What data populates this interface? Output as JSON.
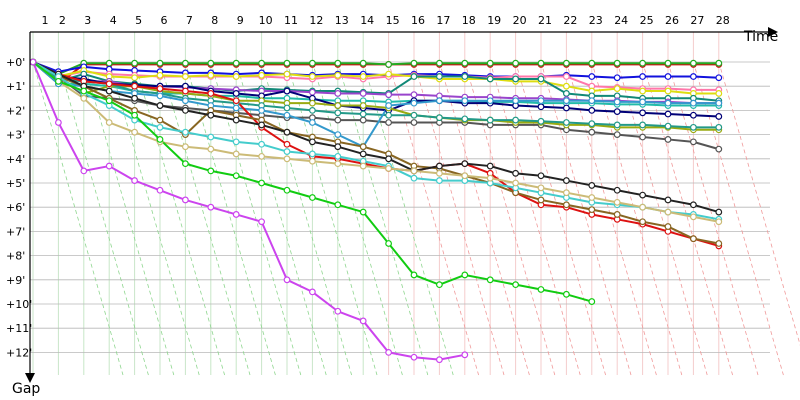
{
  "chart_data": {
    "type": "line",
    "x_axis_label": "Time",
    "y_axis_label": "Gap",
    "x_ticks": [
      1,
      2,
      3,
      4,
      5,
      6,
      7,
      8,
      9,
      10,
      11,
      12,
      13,
      14,
      15,
      16,
      17,
      18,
      19,
      20,
      21,
      22,
      23,
      24,
      25,
      26,
      27,
      28
    ],
    "y_tick_labels": [
      "+0'",
      "+1'",
      "+2'",
      "+3'",
      "+4'",
      "+5'",
      "+6'",
      "+7'",
      "+8'",
      "+9'",
      "+10'",
      "+11'",
      "+12'"
    ],
    "y_range_minutes": [
      0,
      12.5
    ],
    "x_range": [
      1,
      29
    ],
    "grid": true,
    "vertical_grid_colors": [
      "#c8e6c8",
      "#f4cccc"
    ],
    "series": [
      {
        "color": "#cc1111",
        "values": [
          0,
          0.9,
          0.1,
          0.1,
          0.1,
          0.1,
          0.1,
          0.1,
          0.1,
          0.1,
          0.1,
          0.1,
          0.1,
          0.1,
          0.1,
          0.1,
          0.1,
          0.1,
          0.1,
          0.1,
          0.1,
          0.1,
          0.1,
          0.1,
          0.1,
          0.1,
          0.1,
          0.1
        ]
      },
      {
        "color": "#22aa22",
        "values": [
          0,
          0.5,
          0.05,
          0.05,
          0.05,
          0.05,
          0.05,
          0.05,
          0.05,
          0.05,
          0.05,
          0.05,
          0.05,
          0.05,
          0.1,
          0.05,
          0.05,
          0.05,
          0.05,
          0.05,
          0.05,
          0.05,
          0.05,
          0.05,
          0.05,
          0.05,
          0.05,
          0.05
        ]
      },
      {
        "color": "#1111dd",
        "values": [
          0,
          0.4,
          0.2,
          0.3,
          0.35,
          0.4,
          0.45,
          0.45,
          0.5,
          0.45,
          0.5,
          0.55,
          0.5,
          0.5,
          0.55,
          0.5,
          0.5,
          0.55,
          0.6,
          0.6,
          0.6,
          0.55,
          0.6,
          0.65,
          0.6,
          0.6,
          0.6,
          0.65
        ]
      },
      {
        "color": "#ff77aa",
        "values": [
          0,
          0.6,
          0.4,
          0.5,
          0.55,
          0.6,
          0.6,
          0.6,
          0.6,
          0.6,
          0.65,
          0.7,
          0.6,
          0.7,
          0.6,
          0.55,
          0.6,
          0.6,
          0.65,
          0.6,
          0.6,
          0.6,
          1.0,
          1.05,
          1.1,
          1.1,
          1.15,
          1.15
        ]
      },
      {
        "color": "#dddd11",
        "values": [
          0,
          0.6,
          0.35,
          0.6,
          0.65,
          0.55,
          0.6,
          0.55,
          0.6,
          0.55,
          0.5,
          0.6,
          0.55,
          0.6,
          0.5,
          0.6,
          0.7,
          0.7,
          0.7,
          0.8,
          0.8,
          1.0,
          1.2,
          1.1,
          1.2,
          1.2,
          1.3,
          1.3
        ]
      },
      {
        "color": "#118877",
        "values": [
          0,
          0.8,
          0.5,
          0.8,
          0.9,
          1.0,
          1.0,
          1.1,
          1.2,
          1.1,
          1.15,
          1.2,
          1.2,
          1.25,
          1.3,
          0.6,
          0.6,
          0.6,
          0.7,
          0.7,
          0.7,
          1.3,
          1.4,
          1.4,
          1.5,
          1.5,
          1.5,
          1.6
        ]
      },
      {
        "color": "#9944cc",
        "values": [
          0,
          0.7,
          0.8,
          0.8,
          1.0,
          1.0,
          1.05,
          1.1,
          1.15,
          1.2,
          1.2,
          1.25,
          1.3,
          1.3,
          1.35,
          1.35,
          1.4,
          1.45,
          1.45,
          1.5,
          1.5,
          1.55,
          1.6,
          1.6,
          1.65,
          1.65,
          1.7,
          1.7
        ]
      },
      {
        "color": "#22bbaa",
        "values": [
          0,
          0.9,
          0.9,
          1.0,
          1.2,
          1.3,
          1.3,
          1.4,
          1.4,
          1.5,
          1.5,
          1.55,
          1.6,
          1.6,
          1.65,
          1.6,
          1.6,
          1.6,
          1.65,
          1.65,
          1.7,
          1.7,
          1.7,
          1.75,
          1.75,
          1.8,
          1.8,
          1.8
        ]
      },
      {
        "color": "#000077",
        "values": [
          0,
          0.6,
          0.7,
          0.9,
          0.95,
          1.0,
          1.0,
          1.2,
          1.3,
          1.4,
          1.2,
          1.5,
          1.8,
          1.9,
          2.0,
          1.6,
          1.6,
          1.7,
          1.7,
          1.8,
          1.85,
          1.9,
          2.0,
          2.05,
          2.1,
          2.15,
          2.2,
          2.25
        ]
      },
      {
        "color": "#555555",
        "values": [
          0,
          0.6,
          1.4,
          1.5,
          1.6,
          1.8,
          1.9,
          2.0,
          2.1,
          2.2,
          2.3,
          2.3,
          2.4,
          2.4,
          2.5,
          2.5,
          2.5,
          2.5,
          2.6,
          2.6,
          2.6,
          2.8,
          2.9,
          3.0,
          3.1,
          3.2,
          3.3,
          3.6
        ]
      },
      {
        "color": "#99aa11",
        "values": [
          0,
          0.6,
          1.3,
          1.0,
          1.0,
          1.2,
          1.3,
          1.4,
          1.6,
          1.6,
          1.7,
          1.7,
          1.8,
          1.8,
          1.9,
          2.2,
          2.3,
          2.4,
          2.4,
          2.5,
          2.5,
          2.6,
          2.6,
          2.7,
          2.7,
          2.7,
          2.8,
          2.8
        ]
      },
      {
        "color": "#229988",
        "values": [
          0,
          0.7,
          0.8,
          0.9,
          1.2,
          1.3,
          1.5,
          1.6,
          1.7,
          1.8,
          1.9,
          2.0,
          2.1,
          2.15,
          2.2,
          2.2,
          2.3,
          2.35,
          2.4,
          2.4,
          2.45,
          2.5,
          2.55,
          2.6,
          2.6,
          2.65,
          2.7,
          2.7
        ]
      },
      {
        "color": "#3399cc",
        "values": [
          0,
          0.9,
          1.0,
          1.2,
          1.3,
          1.4,
          1.6,
          1.8,
          1.9,
          2.0,
          2.2,
          2.5,
          3.0,
          3.5,
          1.8,
          1.7,
          1.6,
          1.6,
          1.6,
          1.6,
          1.6,
          1.6,
          1.6,
          1.65,
          1.65,
          1.7,
          1.7,
          1.7
        ]
      },
      {
        "color": "#dd1111",
        "values": [
          0,
          0.5,
          0.8,
          0.9,
          1.0,
          1.1,
          1.2,
          1.3,
          1.6,
          2.7,
          3.4,
          3.9,
          4.0,
          4.2,
          4.4,
          4.5,
          4.3,
          4.2,
          4.6,
          5.4,
          5.9,
          6.0,
          6.3,
          6.5,
          6.7,
          7.0,
          7.3,
          7.6
        ]
      },
      {
        "color": "#886622",
        "values": [
          0,
          0.6,
          1.0,
          1.5,
          2.0,
          2.4,
          3.0,
          2.0,
          2.2,
          2.4,
          2.9,
          3.1,
          3.3,
          3.5,
          3.8,
          4.3,
          4.4,
          4.7,
          5.0,
          5.4,
          5.7,
          5.9,
          6.1,
          6.3,
          6.6,
          6.8,
          7.3,
          7.5
        ]
      },
      {
        "color": "#222222",
        "values": [
          0,
          0.5,
          1.0,
          1.2,
          1.5,
          1.8,
          2.0,
          2.2,
          2.4,
          2.6,
          2.9,
          3.3,
          3.5,
          3.8,
          4.0,
          4.5,
          4.3,
          4.2,
          4.3,
          4.6,
          4.7,
          4.9,
          5.1,
          5.3,
          5.5,
          5.7,
          5.9,
          6.2
        ]
      },
      {
        "color": "#44cccc",
        "values": [
          0,
          0.6,
          1.3,
          1.8,
          2.4,
          2.7,
          2.9,
          3.1,
          3.3,
          3.4,
          3.7,
          3.8,
          3.9,
          4.1,
          4.3,
          4.8,
          4.9,
          4.9,
          5.0,
          5.2,
          5.4,
          5.6,
          5.8,
          5.9,
          6.0,
          6.2,
          6.3,
          6.5
        ]
      },
      {
        "color": "#ccbb77",
        "values": [
          0,
          0.8,
          1.5,
          2.5,
          2.9,
          3.3,
          3.5,
          3.6,
          3.8,
          3.9,
          4.0,
          4.1,
          4.2,
          4.3,
          4.4,
          4.5,
          4.6,
          4.7,
          4.8,
          5.0,
          5.2,
          5.4,
          5.6,
          5.8,
          6.0,
          6.2,
          6.4,
          6.6
        ]
      },
      {
        "color": "#11cc11",
        "values": [
          0,
          0.8,
          1.2,
          1.6,
          2.2,
          3.2,
          4.2,
          4.5,
          4.7,
          5.0,
          5.3,
          5.6,
          5.9,
          6.2,
          7.5,
          8.8,
          9.2,
          8.8,
          9.0,
          9.2,
          9.4,
          9.6,
          9.9
        ]
      },
      {
        "color": "#cc44ee",
        "values": [
          0,
          2.5,
          4.5,
          4.3,
          4.9,
          5.3,
          5.7,
          6.0,
          6.3,
          6.6,
          9.0,
          9.5,
          10.3,
          10.7,
          12.0,
          12.2,
          12.3,
          12.1
        ]
      }
    ]
  }
}
